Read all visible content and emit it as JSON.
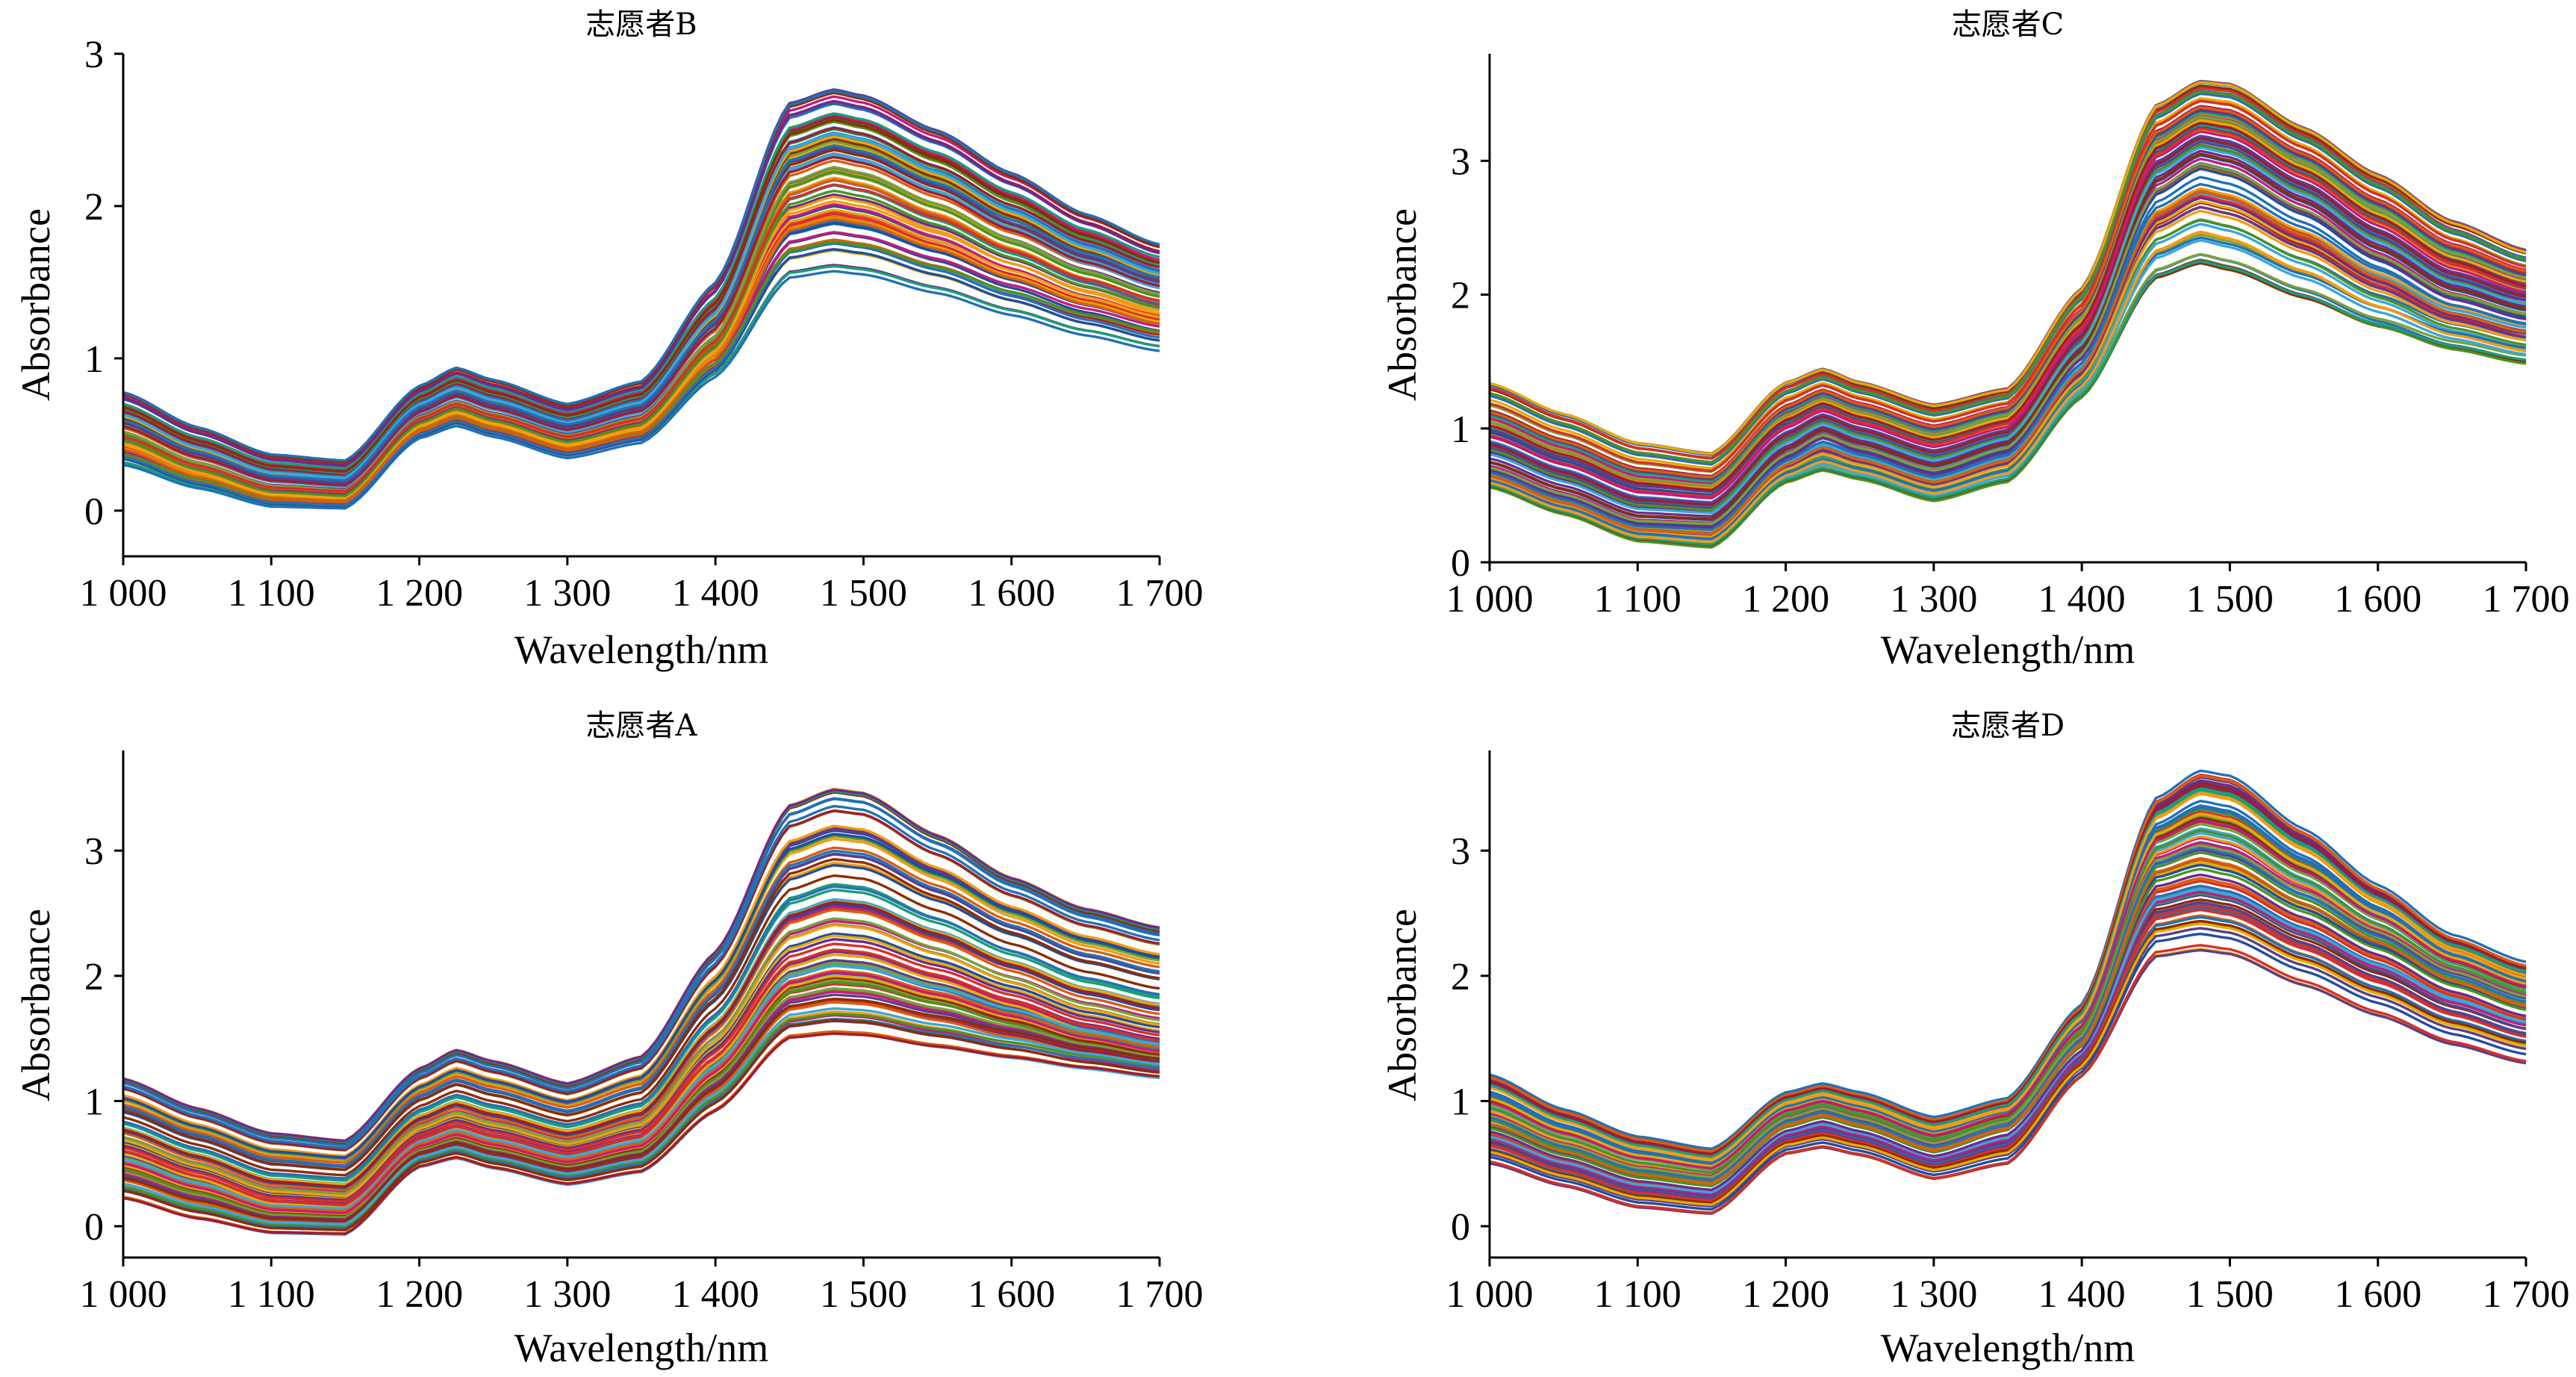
{
  "chart_data": [
    {
      "type": "line",
      "title": "志愿者B",
      "xlabel": "Wavelength/nm",
      "ylabel": "Absorbance",
      "xlim": [
        1000,
        1700
      ],
      "ylim": [
        -0.3,
        3.0
      ],
      "x_ticks": [
        1000,
        1100,
        1200,
        1300,
        1400,
        1500,
        1600,
        1700
      ],
      "x_tick_labels": [
        "1 000",
        "1 100",
        "1 200",
        "1 300",
        "1 400",
        "1 500",
        "1 600",
        "1 700"
      ],
      "y_ticks": [
        0,
        1,
        2,
        3
      ],
      "y_tick_labels": [
        "0",
        "1",
        "2",
        "3"
      ],
      "grid": false,
      "legend": "none",
      "series_count": 90,
      "series_representative": [
        {
          "x": [
            1000,
            1050,
            1100,
            1150,
            1200,
            1225,
            1250,
            1300,
            1350,
            1400,
            1450,
            1480,
            1500,
            1550,
            1600,
            1650,
            1700
          ],
          "values": [
            0.78,
            0.55,
            0.37,
            0.33,
            0.82,
            0.94,
            0.86,
            0.7,
            0.85,
            1.5,
            2.68,
            2.77,
            2.73,
            2.5,
            2.22,
            1.95,
            1.75
          ]
        },
        {
          "x": [
            1000,
            1050,
            1100,
            1150,
            1200,
            1225,
            1250,
            1300,
            1350,
            1400,
            1450,
            1480,
            1500,
            1550,
            1600,
            1650,
            1700
          ],
          "values": [
            0.5,
            0.3,
            0.15,
            0.12,
            0.6,
            0.7,
            0.62,
            0.48,
            0.6,
            1.12,
            2.12,
            2.22,
            2.18,
            1.98,
            1.75,
            1.55,
            1.4
          ]
        },
        {
          "x": [
            1000,
            1050,
            1100,
            1150,
            1200,
            1225,
            1250,
            1300,
            1350,
            1400,
            1450,
            1480,
            1500,
            1550,
            1600,
            1650,
            1700
          ],
          "values": [
            0.3,
            0.15,
            0.03,
            0.02,
            0.48,
            0.56,
            0.49,
            0.35,
            0.45,
            0.88,
            1.52,
            1.56,
            1.54,
            1.42,
            1.28,
            1.15,
            1.05
          ]
        }
      ]
    },
    {
      "type": "line",
      "title": "志愿者C",
      "xlabel": "Wavelength/nm",
      "ylabel": "Absorbance",
      "xlim": [
        1000,
        1700
      ],
      "ylim": [
        0,
        3.8
      ],
      "x_ticks": [
        1000,
        1100,
        1200,
        1300,
        1400,
        1500,
        1600,
        1700
      ],
      "x_tick_labels": [
        "1 000",
        "1 100",
        "1 200",
        "1 300",
        "1 400",
        "1 500",
        "1 600",
        "1 700"
      ],
      "y_ticks": [
        0,
        1,
        2,
        3
      ],
      "y_tick_labels": [
        "0",
        "1",
        "2",
        "3"
      ],
      "grid": false,
      "legend": "none",
      "series_count": 90,
      "series_representative": [
        {
          "x": [
            1000,
            1050,
            1100,
            1150,
            1200,
            1225,
            1250,
            1300,
            1350,
            1400,
            1450,
            1480,
            1500,
            1550,
            1600,
            1650,
            1700
          ],
          "values": [
            1.35,
            1.12,
            0.9,
            0.82,
            1.35,
            1.45,
            1.35,
            1.18,
            1.3,
            2.05,
            3.42,
            3.6,
            3.58,
            3.25,
            2.9,
            2.55,
            2.33
          ]
        },
        {
          "x": [
            1000,
            1050,
            1100,
            1150,
            1200,
            1225,
            1250,
            1300,
            1350,
            1400,
            1450,
            1480,
            1500,
            1550,
            1600,
            1650,
            1700
          ],
          "values": [
            0.7,
            0.5,
            0.3,
            0.28,
            0.8,
            0.95,
            0.85,
            0.68,
            0.85,
            1.55,
            2.8,
            3.0,
            2.95,
            2.65,
            2.3,
            2.0,
            1.85
          ]
        },
        {
          "x": [
            1000,
            1050,
            1100,
            1150,
            1200,
            1225,
            1250,
            1300,
            1350,
            1400,
            1450,
            1480,
            1500,
            1550,
            1600,
            1650,
            1700
          ],
          "values": [
            0.55,
            0.35,
            0.15,
            0.1,
            0.58,
            0.66,
            0.6,
            0.44,
            0.58,
            1.2,
            2.05,
            2.15,
            2.1,
            1.9,
            1.7,
            1.55,
            1.45
          ]
        }
      ]
    },
    {
      "type": "line",
      "title": "志愿者A",
      "xlabel": "Wavelength/nm",
      "ylabel": "Absorbance",
      "xlim": [
        1000,
        1700
      ],
      "ylim": [
        -0.25,
        3.8
      ],
      "x_ticks": [
        1000,
        1100,
        1200,
        1300,
        1400,
        1500,
        1600,
        1700
      ],
      "x_tick_labels": [
        "1 000",
        "1 100",
        "1 200",
        "1 300",
        "1 400",
        "1 500",
        "1 600",
        "1 700"
      ],
      "y_ticks": [
        0,
        1,
        2,
        3
      ],
      "y_tick_labels": [
        "0",
        "1",
        "2",
        "3"
      ],
      "grid": false,
      "legend": "none",
      "series_count": 90,
      "series_representative": [
        {
          "x": [
            1000,
            1050,
            1100,
            1150,
            1200,
            1225,
            1250,
            1300,
            1350,
            1400,
            1450,
            1480,
            1500,
            1550,
            1600,
            1650,
            1700
          ],
          "values": [
            1.22,
            0.98,
            0.78,
            0.72,
            1.3,
            1.45,
            1.36,
            1.18,
            1.4,
            2.25,
            3.45,
            3.58,
            3.55,
            3.2,
            2.85,
            2.6,
            2.45
          ]
        },
        {
          "x": [
            1000,
            1050,
            1100,
            1150,
            1200,
            1225,
            1250,
            1300,
            1350,
            1400,
            1450,
            1480,
            1500,
            1550,
            1600,
            1650,
            1700
          ],
          "values": [
            0.6,
            0.4,
            0.2,
            0.17,
            0.7,
            0.8,
            0.72,
            0.58,
            0.72,
            1.35,
            2.1,
            2.2,
            2.18,
            2.0,
            1.8,
            1.6,
            1.48
          ]
        },
        {
          "x": [
            1000,
            1050,
            1100,
            1150,
            1200,
            1225,
            1250,
            1300,
            1350,
            1400,
            1450,
            1480,
            1500,
            1550,
            1600,
            1650,
            1700
          ],
          "values": [
            0.22,
            0.06,
            -0.05,
            -0.06,
            0.48,
            0.55,
            0.47,
            0.34,
            0.44,
            0.92,
            1.5,
            1.53,
            1.52,
            1.43,
            1.35,
            1.27,
            1.2
          ]
        }
      ]
    },
    {
      "type": "line",
      "title": "志愿者D",
      "xlabel": "Wavelength/nm",
      "ylabel": "Absorbance",
      "xlim": [
        1000,
        1700
      ],
      "ylim": [
        -0.25,
        3.8
      ],
      "x_ticks": [
        1000,
        1100,
        1200,
        1300,
        1400,
        1500,
        1600,
        1700
      ],
      "x_tick_labels": [
        "1 000",
        "1 100",
        "1 200",
        "1 300",
        "1 400",
        "1 500",
        "1 600",
        "1 700"
      ],
      "y_ticks": [
        0,
        1,
        2,
        3
      ],
      "y_tick_labels": [
        "0",
        "1",
        "2",
        "3"
      ],
      "grid": false,
      "legend": "none",
      "series_count": 90,
      "series_representative": [
        {
          "x": [
            1000,
            1050,
            1100,
            1150,
            1200,
            1225,
            1250,
            1300,
            1350,
            1400,
            1450,
            1480,
            1500,
            1550,
            1600,
            1650,
            1700
          ],
          "values": [
            1.2,
            0.92,
            0.7,
            0.6,
            1.05,
            1.12,
            1.05,
            0.85,
            1.0,
            1.75,
            3.4,
            3.62,
            3.58,
            3.15,
            2.7,
            2.3,
            2.08
          ]
        },
        {
          "x": [
            1000,
            1050,
            1100,
            1150,
            1200,
            1225,
            1250,
            1300,
            1350,
            1400,
            1450,
            1480,
            1500,
            1550,
            1600,
            1650,
            1700
          ],
          "values": [
            0.8,
            0.58,
            0.4,
            0.33,
            0.8,
            0.88,
            0.8,
            0.6,
            0.78,
            1.45,
            2.8,
            2.9,
            2.85,
            2.55,
            2.25,
            1.95,
            1.75
          ]
        },
        {
          "x": [
            1000,
            1050,
            1100,
            1150,
            1200,
            1225,
            1250,
            1300,
            1350,
            1400,
            1450,
            1480,
            1500,
            1550,
            1600,
            1650,
            1700
          ],
          "values": [
            0.5,
            0.32,
            0.15,
            0.1,
            0.58,
            0.63,
            0.57,
            0.38,
            0.5,
            1.2,
            2.15,
            2.2,
            2.17,
            1.92,
            1.68,
            1.45,
            1.3
          ]
        }
      ]
    }
  ],
  "colors": {
    "series_palette": [
      "#1f4e9e",
      "#d73027",
      "#f39c12",
      "#6a2c91",
      "#7aa13c",
      "#3aa7d9",
      "#a11d2c",
      "#2a6fb5",
      "#d95f0e",
      "#5a3e8c",
      "#4d9221",
      "#c51b7d",
      "#e6ab02",
      "#1b9e77",
      "#8c2d04",
      "#2171b5"
    ],
    "axis": "#000000",
    "background": "#ffffff"
  }
}
